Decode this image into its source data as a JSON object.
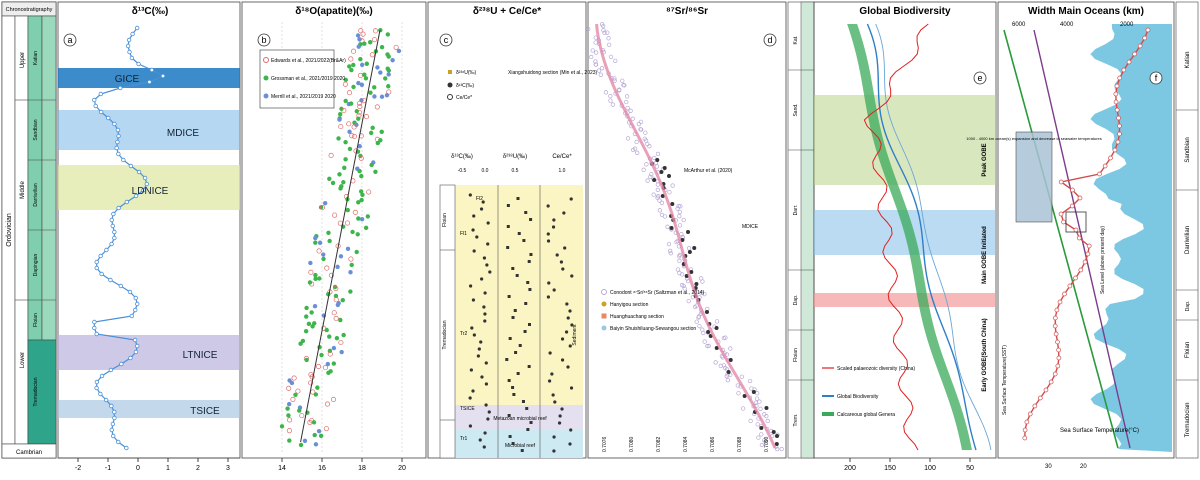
{
  "strat": {
    "header": "Chronostratigraphy",
    "system": "Ordovician",
    "base": "Cambrian",
    "series": [
      "Upper",
      "Middle",
      "Lower"
    ],
    "stages": [
      "Katian",
      "Sandbian",
      "Darriwilian",
      "Dapingian",
      "Floian",
      "Tremadocian"
    ],
    "stages_short": [
      "Hirn.",
      "Kat.",
      "Sand.",
      "Darr.",
      "Dap.",
      "Floian",
      "Trem."
    ]
  },
  "panel_a": {
    "letter": "a",
    "title": "δ¹³C(‰)",
    "events": [
      "GICE",
      "MDICE",
      "LDNICE",
      "LTNICE",
      "TSICE"
    ],
    "ticks": [
      "-2",
      "-1",
      "0",
      "1",
      "2",
      "3"
    ],
    "colors": {
      "line": "#4a90d9",
      "gice": "#1a78c2",
      "mdice": "#7ab6e6",
      "ldnice": "#dde7a0",
      "ltnice": "#b9b2dd",
      "tsice": "#a9c8e3"
    }
  },
  "panel_b": {
    "letter": "b",
    "title": "δ¹⁸O(apatite)(‰)",
    "legend": [
      "Edwards et al., 2021/2022(Br&Ar)",
      "Grossman et al., 2021/2019 2020",
      "Merrill et al., 2021/2019 2020"
    ],
    "ticks": [
      "14",
      "16",
      "18",
      "20"
    ],
    "colors": {
      "red": "#e06a6a",
      "green": "#3cb54a",
      "blue": "#6a8fd6"
    }
  },
  "panel_c": {
    "letter": "c",
    "title": "δ²³⁸U + Ce/Ce*",
    "legend": [
      "δ²³⁸U(‰)",
      "δ¹³C(‰)",
      "Ce/Ce*"
    ],
    "legend_note": "Xiangshuidong section (Min et al., 2023)",
    "sub_titles": [
      "δ¹³C(‰)",
      "δ²³⁸U(‰)",
      "Ce/Ce*"
    ],
    "sub_ticks": [
      "-0.5",
      "0.0",
      "0.5",
      "1.0"
    ],
    "labels": [
      "Floian",
      "Tremadocian",
      "Fl1",
      "Fl2",
      "Tr2",
      "Tr1",
      "Metazoan microbial reef",
      "Microbial reef",
      "TSICE",
      "Sediment"
    ],
    "colors": {
      "yellow": "#fbf5c4",
      "lilac": "#e4e0ef",
      "cyan": "#cde9f2"
    }
  },
  "panel_d": {
    "letter": "d",
    "title": "⁸⁷Sr/⁸⁶Sr",
    "notes": [
      "McArthur et al. (2020)",
      "MDICE"
    ],
    "legend": [
      "Conodont ⁸⁷Sr/⁸⁶Sr (Saltzman et al., 2014)",
      "Hanyigou section",
      "Huanghuachang section",
      "Baiyin Shuishiluang-Sewangou section"
    ],
    "ticks": [
      "0.7076",
      "0.7080",
      "0.7082",
      "0.7084",
      "0.7086",
      "0.7088",
      "0.7090"
    ],
    "colors": {
      "curve": "#e48aa9",
      "points": "#b7a8d6",
      "dark": "#333333"
    }
  },
  "panel_e": {
    "letter": "e",
    "title": "Global Biodiversity",
    "side_labels": [
      "Peak GOBE",
      "Main GOBE Initiated",
      "Early GOBE(South China)"
    ],
    "legend": [
      "Scaled palaeozoic diversity (China)",
      "Global Biodiversity",
      "Calcareous global Genera"
    ],
    "ticks": [
      "200",
      "150",
      "100",
      "50"
    ],
    "colors": {
      "red": "#e02020",
      "blue": "#2e7fc8",
      "green": "#3aaa5a",
      "band_green": "#b9d48a",
      "band_blue": "#8ec3ea",
      "band_red": "#f29a9a"
    }
  },
  "panel_f": {
    "letter": "f",
    "title": "Width Main Oceans (km)",
    "labels": [
      "Sea Level (above present day)",
      "Sea Surface Temperature(°C)",
      "Sea Surface Temperature(SST)"
    ],
    "box_note": "1000 - 4000 km ocean(s) expansion and decrease in seawater temperatures",
    "ticks": [
      "6000",
      "4000",
      "2000"
    ],
    "bottom_ticks": [
      "30",
      "20"
    ],
    "colors": {
      "sea": "#7cc8e3",
      "red": "#d24b4b",
      "green": "#2a9a3a",
      "purple": "#7b3c8a"
    }
  },
  "strat_right": [
    "Katian",
    "Sandbian",
    "Darriwilian",
    "Dap.",
    "Floian",
    "Tremadocian"
  ]
}
